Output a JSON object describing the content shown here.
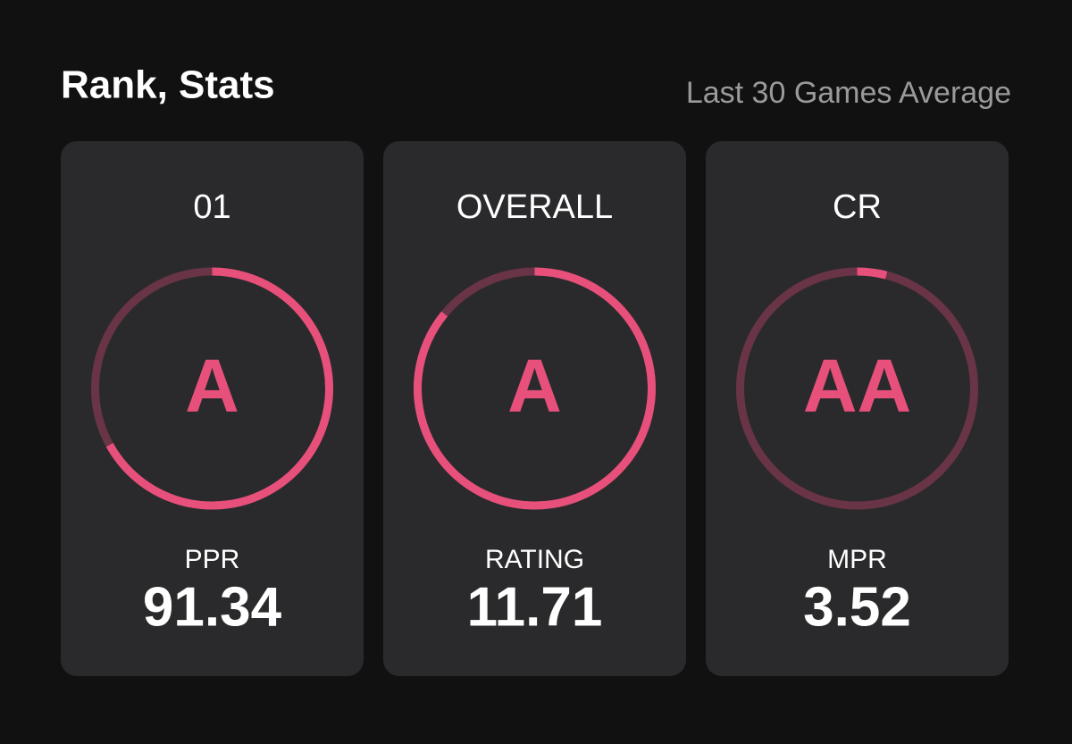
{
  "header": {
    "title": "Rank, Stats",
    "subtitle": "Last 30 Games Average"
  },
  "cards": [
    {
      "label": "01",
      "grade": "A",
      "stat_label": "PPR",
      "stat_value": 91.34,
      "progress": 0.67
    },
    {
      "label": "OVERALL",
      "grade": "A",
      "stat_label": "RATING",
      "stat_value": 11.71,
      "progress": 0.86
    },
    {
      "label": "CR",
      "grade": "AA",
      "stat_label": "MPR",
      "stat_value": 3.52,
      "progress": 0.04
    }
  ]
}
